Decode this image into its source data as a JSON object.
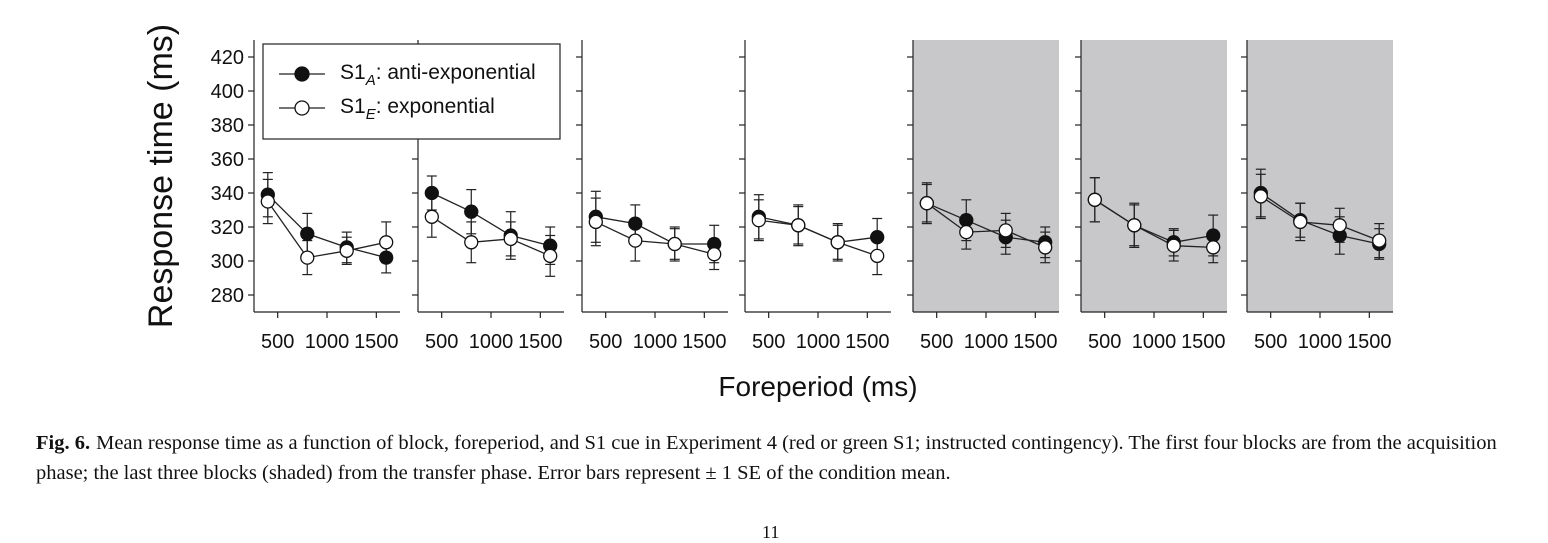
{
  "chart_data": {
    "type": "line",
    "ylabel": "Response time (ms)",
    "xlabel": "Foreperiod (ms)",
    "x": [
      400,
      800,
      1200,
      1600
    ],
    "x_ticks": [
      500,
      1000,
      1500
    ],
    "x_tick_labels": [
      "500",
      "1000",
      "1500"
    ],
    "ylim": [
      270,
      430
    ],
    "y_ticks": [
      280,
      300,
      320,
      340,
      360,
      380,
      400,
      420
    ],
    "y_tick_labels": [
      "280",
      "300",
      "320",
      "340",
      "360",
      "380",
      "400",
      "420"
    ],
    "legend_placement": "top, inside first panel",
    "legend": [
      {
        "series": "S1A",
        "prefix": "S1",
        "subscript": "A",
        "suffix": ": anti-exponential",
        "marker": "filled circle"
      },
      {
        "series": "S1E",
        "prefix": "S1",
        "subscript": "E",
        "suffix": ": exponential",
        "marker": "open circle"
      }
    ],
    "shaded_panel_color": "#c8c8ca",
    "panels": [
      {
        "shaded": false,
        "series": [
          {
            "key": "S1A",
            "values": [
              339,
              316,
              308,
              302
            ],
            "se": [
              13,
              12,
              9,
              9
            ]
          },
          {
            "key": "S1E",
            "values": [
              335,
              302,
              306,
              311
            ],
            "se": [
              13,
              10,
              8,
              12
            ]
          }
        ]
      },
      {
        "shaded": false,
        "series": [
          {
            "key": "S1A",
            "values": [
              340,
              329,
              315,
              309
            ],
            "se": [
              10,
              13,
              14,
              11
            ]
          },
          {
            "key": "S1E",
            "values": [
              326,
              311,
              313,
              303
            ],
            "se": [
              12,
              12,
              10,
              12
            ]
          }
        ]
      },
      {
        "shaded": false,
        "series": [
          {
            "key": "S1A",
            "values": [
              326,
              322,
              310,
              310
            ],
            "se": [
              15,
              11,
              10,
              11
            ]
          },
          {
            "key": "S1E",
            "values": [
              323,
              312,
              310,
              304
            ],
            "se": [
              14,
              12,
              9,
              9
            ]
          }
        ]
      },
      {
        "shaded": false,
        "series": [
          {
            "key": "S1A",
            "values": [
              326,
              321,
              311,
              314
            ],
            "se": [
              13,
              12,
              11,
              11
            ]
          },
          {
            "key": "S1E",
            "values": [
              324,
              321,
              311,
              303
            ],
            "se": [
              12,
              11,
              10,
              11
            ]
          }
        ]
      },
      {
        "shaded": true,
        "series": [
          {
            "key": "S1A",
            "values": [
              334,
              324,
              314,
              311
            ],
            "se": [
              12,
              12,
              10,
              9
            ]
          },
          {
            "key": "S1E",
            "values": [
              334,
              317,
              318,
              308
            ],
            "se": [
              11,
              10,
              10,
              9
            ]
          }
        ]
      },
      {
        "shaded": true,
        "series": [
          {
            "key": "S1A",
            "values": [
              336,
              321,
              311,
              315
            ],
            "se": [
              13,
              12,
              8,
              12
            ]
          },
          {
            "key": "S1E",
            "values": [
              336,
              321,
              309,
              308
            ],
            "se": [
              13,
              13,
              9,
              9
            ]
          }
        ]
      },
      {
        "shaded": true,
        "series": [
          {
            "key": "S1A",
            "values": [
              340,
              324,
              315,
              310
            ],
            "se": [
              14,
              10,
              11,
              9
            ]
          },
          {
            "key": "S1E",
            "values": [
              338,
              323,
              321,
              312
            ],
            "se": [
              13,
              11,
              10,
              10
            ]
          }
        ]
      }
    ]
  },
  "caption": {
    "label": "Fig. 6.",
    "text": "Mean response time as a function of block, foreperiod, and S1 cue in Experiment 4 (red or green S1; instructed contingency). The first four blocks are from the acquisition phase; the last three blocks (shaded) from the transfer phase. Error bars represent ± 1 SE of the condition mean."
  },
  "page_number": "11"
}
